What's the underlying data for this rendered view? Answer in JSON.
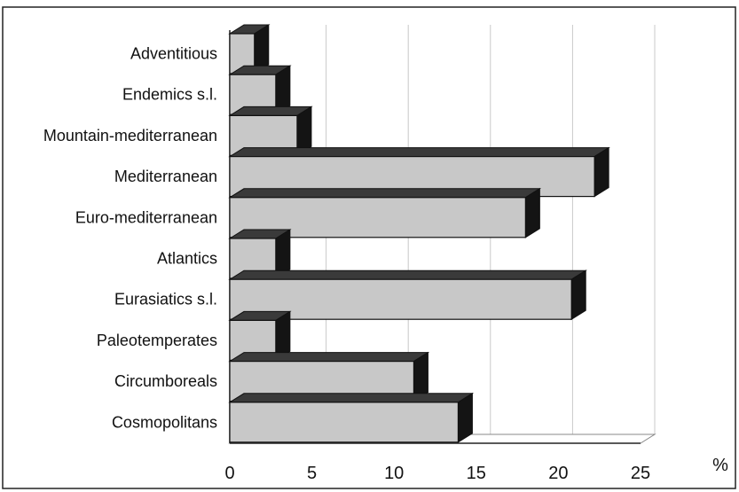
{
  "chart_data": {
    "type": "bar",
    "orientation": "horizontal",
    "style": "3d",
    "categories": [
      "Adventitious",
      "Endemics s.l.",
      "Mountain-mediterranean",
      "Mediterranean",
      "Euro-mediterranean",
      "Atlantics",
      "Eurasiatics s.l.",
      "Paleotemperates",
      "Circumboreals",
      "Cosmopolitans"
    ],
    "values": [
      1.5,
      2.8,
      4.1,
      22.2,
      18.0,
      2.8,
      20.8,
      2.8,
      11.2,
      13.9
    ],
    "title": "",
    "xlabel": "",
    "ylabel": "",
    "xunit": "%",
    "xlim": [
      0,
      25
    ],
    "xticks": [
      "0",
      "5",
      "10",
      "15",
      "20",
      "25"
    ],
    "grid": "vertical",
    "legend": "none",
    "colors": {
      "bar_front": "#c8c8c8",
      "bar_top": "#3a3a3a",
      "bar_side": "#141414",
      "grid": "#c9c9c9",
      "frame": "#222222"
    }
  }
}
